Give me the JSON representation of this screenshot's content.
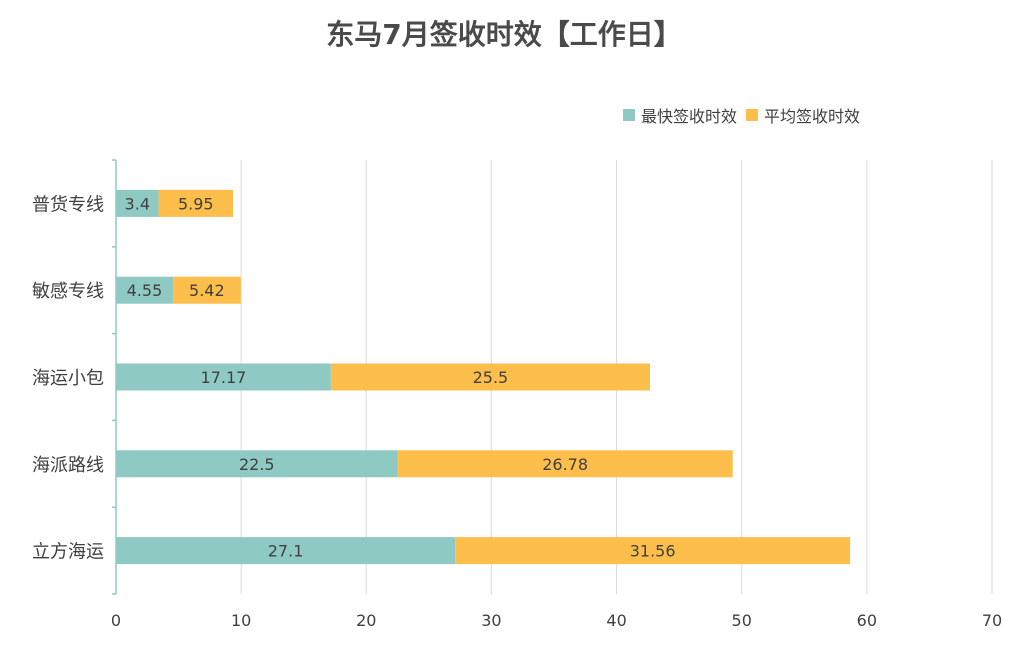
{
  "chart_data": {
    "type": "bar",
    "orientation": "horizontal",
    "stacked": true,
    "title": "东马7月签收时效【工作日】",
    "xlabel": "",
    "ylabel": "",
    "xlim": [
      0,
      70
    ],
    "x_ticks": [
      "0",
      "10",
      "20",
      "30",
      "40",
      "50",
      "60",
      "70"
    ],
    "grid": true,
    "legend_position": "top-right",
    "categories": [
      "普货专线",
      "敏感专线",
      "海运小包",
      "海派路线",
      "立方海运"
    ],
    "series": [
      {
        "name": "最快签收时效",
        "color": "#8fc9c3",
        "values": [
          3.4,
          4.55,
          17.17,
          22.5,
          27.1
        ],
        "labels": [
          "3.4",
          "4.55",
          "17.17",
          "22.5",
          "27.1"
        ]
      },
      {
        "name": "平均签收时效",
        "color": "#fdbe4b",
        "values": [
          5.95,
          5.42,
          25.5,
          26.78,
          31.56
        ],
        "labels": [
          "5.95",
          "5.42",
          "25.5",
          "26.78",
          "31.56"
        ]
      }
    ],
    "colors": {
      "axis": "#8fc9c3",
      "grid": "#d9d9d9",
      "text": "#404040",
      "title": "#4a4a4a"
    }
  }
}
